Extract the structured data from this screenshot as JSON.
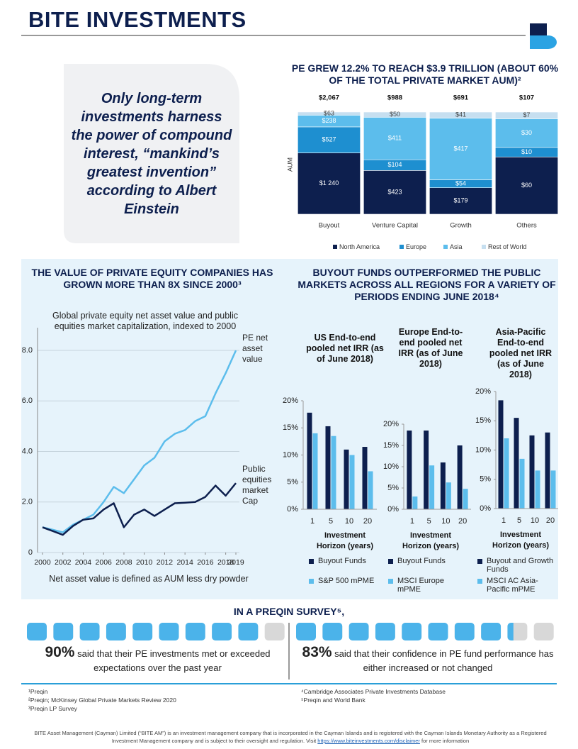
{
  "header": {
    "title": "BITE INVESTMENTS"
  },
  "quote": "Only long-term investments harness the power of compound interest, “mankind’s greatest invention” according to Albert Einstein",
  "chart_data": [
    {
      "type": "bar",
      "stacked": true,
      "normalize": true,
      "title": "PE GREW 12.2% TO REACH $3.9 TRILLION (ABOUT 60% OF THE TOTAL PRIVATE MARKET AUM)²",
      "ylabel": "AUM",
      "categories": [
        "Buyout",
        "Venture Capital",
        "Growth",
        "Others"
      ],
      "totals": [
        2067,
        988,
        691,
        107
      ],
      "total_labels": [
        "$2,067",
        "$988",
        "$691",
        "$107"
      ],
      "series": [
        {
          "name": "North America",
          "color": "#0d1f4e",
          "values": [
            1240,
            423,
            179,
            60
          ],
          "value_labels": [
            "$1 240",
            "$423",
            "$179",
            "$60"
          ]
        },
        {
          "name": "Europe",
          "color": "#1e8fd0",
          "values": [
            527,
            104,
            54,
            10
          ],
          "value_labels": [
            "$527",
            "$104",
            "$54",
            "$10"
          ]
        },
        {
          "name": "Asia",
          "color": "#5cbdec",
          "values": [
            238,
            411,
            417,
            30
          ],
          "value_labels": [
            "$238",
            "$411",
            "$417",
            "$30"
          ]
        },
        {
          "name": "Rest of World",
          "color": "#c6dff0",
          "values": [
            63,
            50,
            41,
            7
          ],
          "value_labels": [
            "$63",
            "$50",
            "$41",
            "$7"
          ]
        }
      ]
    },
    {
      "type": "line",
      "title": "THE VALUE OF PRIVATE EQUITY COMPANIES HAS GROWN MORE THAN 8X SINCE 2000³",
      "subtitle": "Global private equity net asset value and public equities market capitalization, indexed to 2000",
      "note": "Net asset value is defined as AUM less dry powder",
      "x": [
        2000,
        2001,
        2002,
        2003,
        2004,
        2005,
        2006,
        2007,
        2008,
        2009,
        2010,
        2011,
        2012,
        2013,
        2014,
        2015,
        2016,
        2017,
        2018,
        2019
      ],
      "xlim": [
        2000,
        2019
      ],
      "xticks": [
        2000,
        2002,
        2004,
        2006,
        2008,
        2010,
        2012,
        2014,
        2016,
        2018,
        2019
      ],
      "ylim": [
        0,
        8.9
      ],
      "yticks": [
        0,
        {
          "value": 2,
          "label": "2.0"
        },
        {
          "value": 4,
          "label": "4.0"
        },
        {
          "value": 6,
          "label": "6.0"
        },
        {
          "value": 8,
          "label": "8.0"
        }
      ],
      "grid": true,
      "series": [
        {
          "name": "PE net asset value",
          "color": "#5cbdec",
          "values": [
            1.0,
            0.9,
            0.8,
            1.1,
            1.3,
            1.5,
            2.0,
            2.6,
            2.35,
            2.9,
            3.45,
            3.75,
            4.4,
            4.7,
            4.85,
            5.2,
            5.4,
            6.3,
            7.1,
            8.0
          ]
        },
        {
          "name": "Public equities market Cap",
          "color": "#0d1f4e",
          "values": [
            1.0,
            0.85,
            0.7,
            1.05,
            1.3,
            1.35,
            1.7,
            1.95,
            1.0,
            1.5,
            1.7,
            1.45,
            1.7,
            1.95,
            1.97,
            2.0,
            2.2,
            2.65,
            2.25,
            2.75
          ]
        }
      ]
    },
    {
      "type": "bar",
      "title": "US End-to-end pooled net IRR (as of June 2018)",
      "xlabel": "Investment Horizon (years)",
      "categories": [
        "1",
        "5",
        "10",
        "20"
      ],
      "ylim": [
        0,
        20
      ],
      "yticks": [
        {
          "value": 0,
          "label": "0%"
        },
        {
          "value": 5,
          "label": "5%"
        },
        {
          "value": 10,
          "label": "10%"
        },
        {
          "value": 15,
          "label": "15%"
        },
        {
          "value": 20,
          "label": "20%"
        }
      ],
      "series": [
        {
          "name": "Buyout Funds",
          "color": "#0d1f4e",
          "values": [
            17.8,
            15.3,
            11,
            11.5
          ]
        },
        {
          "name": "S&P 500 mPME",
          "color": "#5cbdec",
          "values": [
            14,
            13.5,
            10,
            7
          ]
        }
      ]
    },
    {
      "type": "bar",
      "title": "Europe End-to-end pooled net IRR (as of June 2018)",
      "xlabel": "Investment Horizon (years)",
      "categories": [
        "1",
        "5",
        "10",
        "20"
      ],
      "ylim": [
        0,
        20
      ],
      "yticks": [
        {
          "value": 0,
          "label": "0%"
        },
        {
          "value": 5,
          "label": "5%"
        },
        {
          "value": 10,
          "label": "10%"
        },
        {
          "value": 15,
          "label": "15%"
        },
        {
          "value": 20,
          "label": "20%"
        }
      ],
      "series": [
        {
          "name": "Buyout Funds",
          "color": "#0d1f4e",
          "values": [
            18.5,
            18.5,
            11,
            15
          ]
        },
        {
          "name": "MSCI Europe mPME",
          "color": "#5cbdec",
          "values": [
            3,
            10.3,
            6.3,
            4.8
          ]
        }
      ]
    },
    {
      "type": "bar",
      "title": "Asia-Pacific End-to-end pooled net IRR (as of June 2018)",
      "xlabel": "Investment Horizon (years)",
      "categories": [
        "1",
        "5",
        "10",
        "20"
      ],
      "ylim": [
        0,
        20
      ],
      "yticks": [
        {
          "value": 0,
          "label": "0%"
        },
        {
          "value": 5,
          "label": "5%"
        },
        {
          "value": 10,
          "label": "10%"
        },
        {
          "value": 15,
          "label": "15%"
        },
        {
          "value": 20,
          "label": "20%"
        }
      ],
      "series": [
        {
          "name": "Buyout and Growth Funds",
          "color": "#0d1f4e",
          "values": [
            18.5,
            15.5,
            12.5,
            13
          ]
        },
        {
          "name": "MSCI AC Asia-Pacific mPME",
          "color": "#5cbdec",
          "values": [
            12,
            8.5,
            6.5,
            6.5
          ]
        }
      ]
    }
  ],
  "section_title": "BUYOUT FUNDS OUTPERFORMED THE PUBLIC MARKETS ACROSS ALL REGIONS FOR A VARIETY OF PERIODS ENDING JUNE 2018⁴",
  "survey": {
    "title": "IN A PREQIN SURVEY⁵,",
    "items": [
      {
        "value": 90,
        "label": "90%",
        "text": "said that their PE investments met or exceeded expectations over the past year"
      },
      {
        "value": 83,
        "label": "83%",
        "text": "said that their confidence in PE fund performance has either increased or not changed"
      }
    ]
  },
  "footnotes": [
    "¹Preqin",
    "²Preqin; McKinsey Global Private Markets Review 2020",
    "³Preqin LP Survey",
    "⁴Cambridge Associates Private Investments Database",
    "⁵Preqin and World Bank"
  ],
  "disclaimer": {
    "text": "BITE Asset Management (Cayman) Limited (“BITE AM”) is an investment management company that is incorporated in the Cayman Islands and is registered with the Cayman Islands Monetary Authority as a Registered Investment Management company and is subject to their oversight and regulation. Visit",
    "link": "https://www.biteinvestments.com/disclaimer",
    "after": "for more information"
  }
}
